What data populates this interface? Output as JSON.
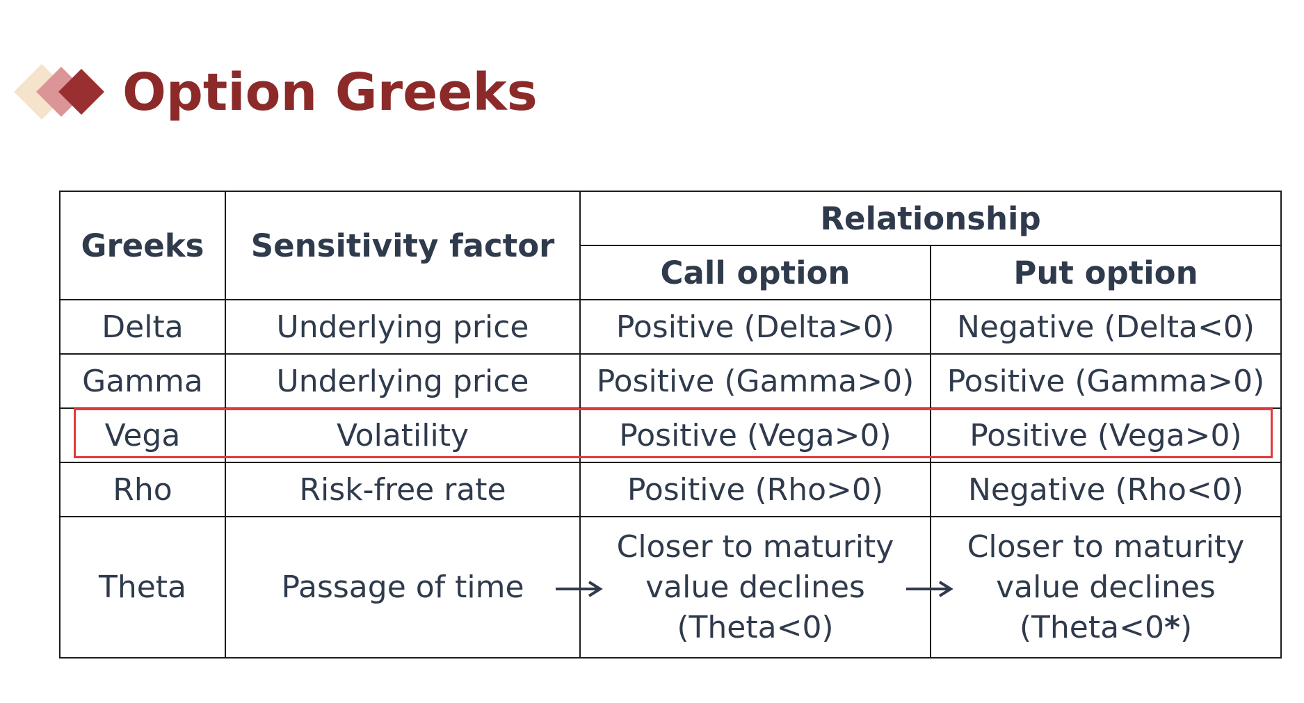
{
  "title": "Option Greeks",
  "icons": {
    "title_icon": "stacked-diamonds-icon",
    "arrow_icon": "right-arrow-icon"
  },
  "colors": {
    "title": "#8c2a2a",
    "diamond_light": "#f6e3cb",
    "diamond_mid": "#dc9597",
    "diamond_dark": "#9a2f32",
    "text": "#2f3b4c",
    "highlight": "#e23a3a"
  },
  "table": {
    "headers": {
      "greeks": "Greeks",
      "sensitivity": "Sensitivity factor",
      "relationship": "Relationship",
      "call": "Call option",
      "put": "Put option"
    },
    "rows": [
      {
        "greek": "Delta",
        "factor": "Underlying price",
        "call": "Positive (Delta>0)",
        "put": "Negative (Delta<0)"
      },
      {
        "greek": "Gamma",
        "factor": "Underlying price",
        "call": "Positive (Gamma>0)",
        "put": "Positive (Gamma>0)"
      },
      {
        "greek": "Vega",
        "factor": "Volatility",
        "call": "Positive (Vega>0)",
        "put": "Positive (Vega>0)"
      },
      {
        "greek": "Rho",
        "factor": "Risk-free rate",
        "call": "Positive (Rho>0)",
        "put": "Negative (Rho<0)"
      }
    ],
    "theta": {
      "greek": "Theta",
      "factor": "Passage of time",
      "call": {
        "line1": "Closer to maturity",
        "line2": "value declines",
        "line3": "(Theta<0)"
      },
      "put": {
        "line1": "Closer to maturity",
        "line2": "value declines",
        "line3_prefix": "(Theta<0",
        "line3_mark": "*",
        "line3_suffix": ")"
      }
    },
    "highlighted_row": "Vega"
  }
}
